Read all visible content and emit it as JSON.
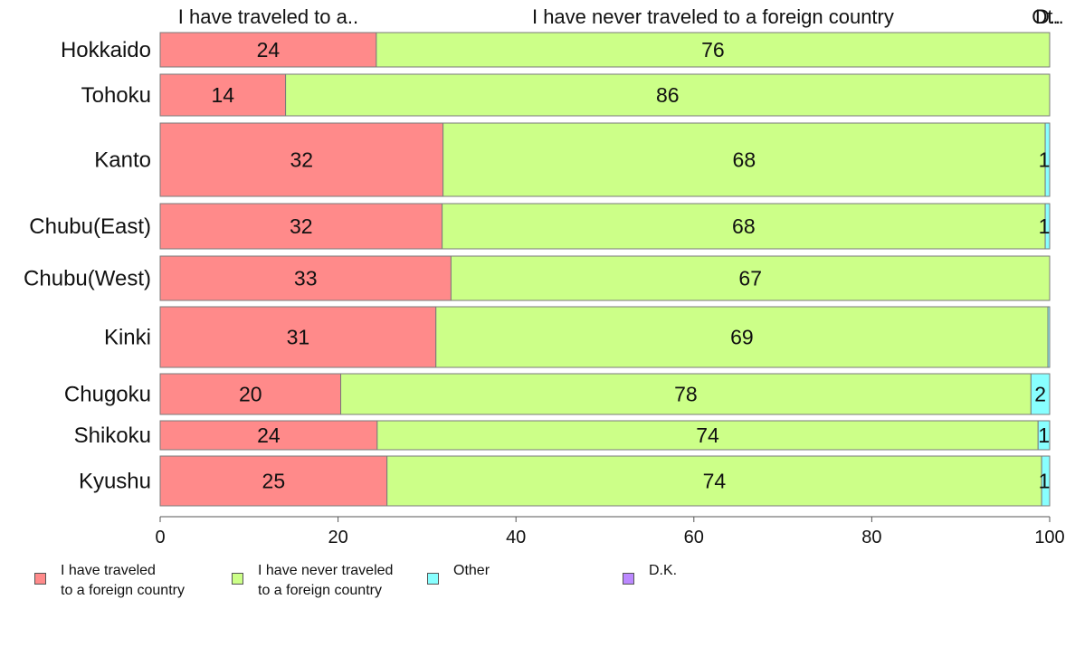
{
  "chart_data": {
    "type": "bar",
    "orientation": "horizontal",
    "stacked": true,
    "categories": [
      "Hokkaido",
      "Tohoku",
      "Kanto",
      "Chubu(East)",
      "Chubu(West)",
      "Kinki",
      "Chugoku",
      "Shikoku",
      "Kyushu"
    ],
    "series": [
      {
        "name": "I have traveled to a foreign country",
        "header": "I have traveled to a..",
        "color": "#ff8a8a",
        "values": [
          24.3,
          14.1,
          31.8,
          31.7,
          32.7,
          31.0,
          20.3,
          24.4,
          25.5
        ],
        "labels": [
          "24",
          "14",
          "32",
          "32",
          "33",
          "31",
          "20",
          "24",
          "25"
        ]
      },
      {
        "name": "I have never traveled to a foreign country",
        "header": "I have never traveled to a foreign country",
        "color": "#ccff88",
        "values": [
          75.7,
          85.9,
          67.7,
          67.8,
          67.3,
          68.8,
          77.6,
          74.3,
          73.6
        ],
        "labels": [
          "76",
          "86",
          "68",
          "68",
          "67",
          "69",
          "78",
          "74",
          "74"
        ]
      },
      {
        "name": "Other",
        "header": "Ot..",
        "color": "#88ffff",
        "values": [
          0,
          0,
          0.5,
          0.5,
          0,
          0.2,
          2.1,
          1.3,
          0.9
        ],
        "labels": [
          "",
          "",
          "1",
          "1",
          "",
          "",
          "2",
          "1",
          "1"
        ]
      },
      {
        "name": "D.K.",
        "header": "D..",
        "color": "#bb88ff",
        "values": [
          0,
          0,
          0,
          0,
          0,
          0,
          0,
          0,
          0
        ],
        "labels": [
          "",
          "",
          "",
          "",
          "",
          "",
          "",
          "",
          ""
        ]
      }
    ],
    "xlim": [
      0,
      100
    ],
    "xticks": [
      0,
      20,
      40,
      60,
      80,
      100
    ],
    "grid": false,
    "legend_position": "bottom-left"
  },
  "legend": [
    {
      "label": "I have traveled\nto a foreign country",
      "color": "#ff8a8a"
    },
    {
      "label": "I have never traveled\nto a foreign country",
      "color": "#ccff88"
    },
    {
      "label": "Other",
      "color": "#88ffff"
    },
    {
      "label": "D.K.",
      "color": "#bb88ff"
    }
  ]
}
